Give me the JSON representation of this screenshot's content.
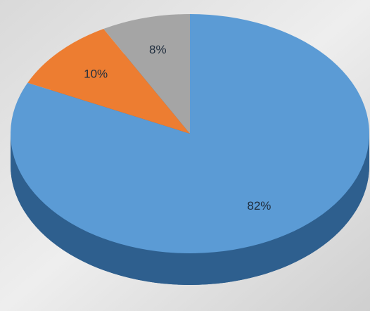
{
  "chart_data": {
    "type": "pie",
    "three_d": true,
    "values": [
      82,
      10,
      8
    ],
    "value_labels": [
      "82%",
      "10%",
      "8%"
    ],
    "colors": [
      "#5b9bd5",
      "#ed7d31",
      "#a5a5a5"
    ],
    "start_angle": 0,
    "direction": "clockwise"
  }
}
